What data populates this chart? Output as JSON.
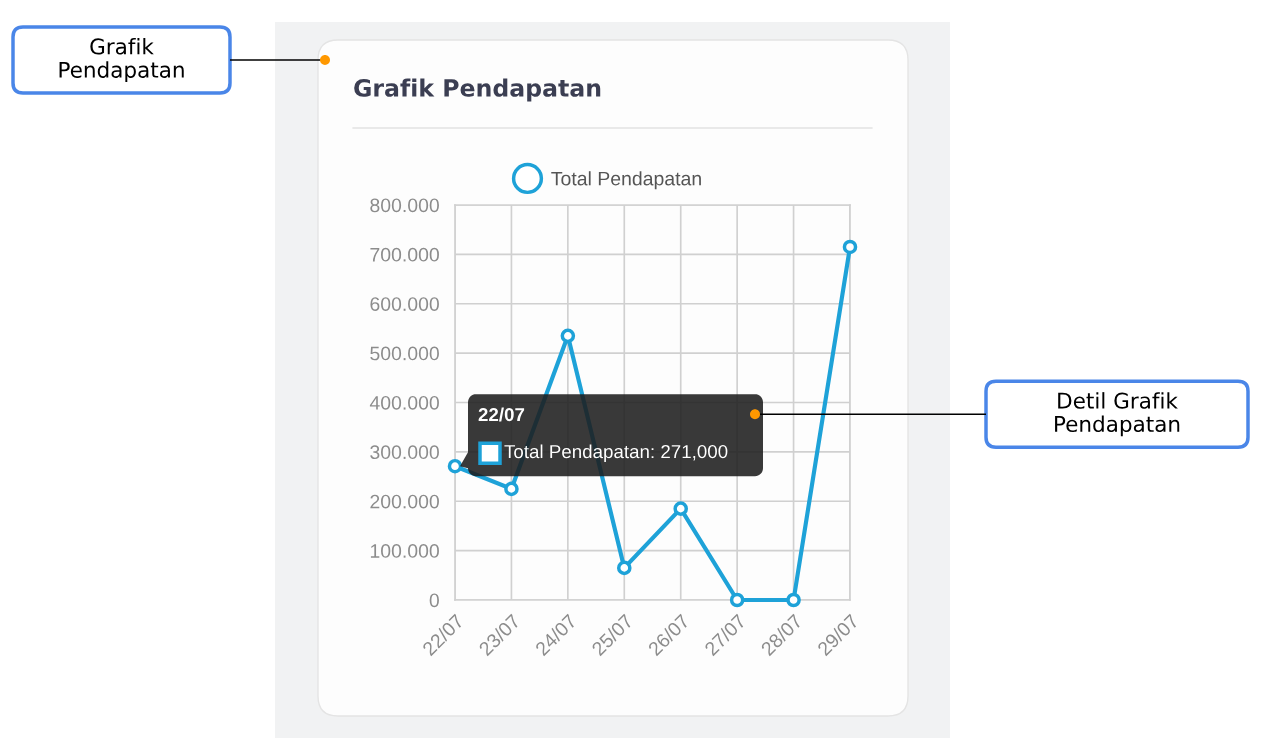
{
  "chart_data": {
    "type": "line",
    "title": "Grafik Pendapatan",
    "categories": [
      "22/07",
      "23/07",
      "24/07",
      "25/07",
      "26/07",
      "27/07",
      "28/07",
      "29/07"
    ],
    "series": [
      {
        "name": "Total Pendapatan",
        "color": "#1ea2d8",
        "values": [
          271000,
          225000,
          535000,
          65000,
          185000,
          0,
          0,
          715000
        ]
      }
    ],
    "ylim": [
      0,
      800000
    ],
    "yticks": [
      0,
      {
        "value": 100000,
        "label": "100.000"
      },
      {
        "value": 200000,
        "label": "200.000"
      },
      {
        "value": 300000,
        "label": "300.000"
      },
      {
        "value": 400000,
        "label": "400.000"
      },
      {
        "value": 500000,
        "label": "500.000"
      },
      {
        "value": 600000,
        "label": "600.000"
      },
      {
        "value": 700000,
        "label": "700.000"
      },
      {
        "value": 800000,
        "label": "800.000"
      }
    ],
    "grid": true,
    "legend": "top",
    "marker": "circle",
    "line_style": "solid",
    "annotations": [
      {
        "text": "22/07",
        "x": "22/07",
        "y": 271000
      },
      {
        "text": "Total Pendapatan: 271,000",
        "x": "22/07",
        "y": 271000
      },
      "Grafik Pendapatan",
      "Detil Grafik Pendapatan"
    ]
  }
}
